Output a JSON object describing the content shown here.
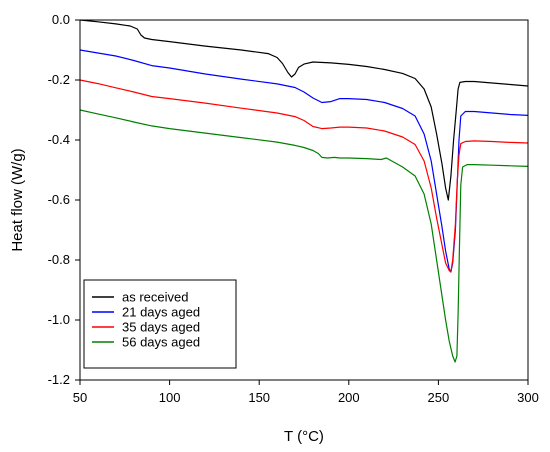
{
  "chart_data": {
    "type": "line",
    "xlabel": "T (°C)",
    "ylabel": "Heat flow (W/g)",
    "xlim": [
      50,
      300
    ],
    "ylim": [
      -1.2,
      0.0
    ],
    "xticks": [
      50,
      100,
      150,
      200,
      250,
      300
    ],
    "yticks": [
      0.0,
      -0.2,
      -0.4,
      -0.6,
      -0.8,
      -1.0,
      -1.2
    ],
    "ytick_labels": [
      "0.0",
      "-0.2",
      "-0.4",
      "-0.6",
      "-0.8",
      "-1.0",
      "-1.2"
    ],
    "grid": false,
    "legend_position": "bottom-left",
    "series": [
      {
        "name": "as received",
        "color": "#000000",
        "points": [
          [
            50,
            0.0
          ],
          [
            60,
            -0.006
          ],
          [
            70,
            -0.013
          ],
          [
            78,
            -0.02
          ],
          [
            82,
            -0.03
          ],
          [
            84,
            -0.05
          ],
          [
            86,
            -0.06
          ],
          [
            90,
            -0.065
          ],
          [
            100,
            -0.072
          ],
          [
            120,
            -0.087
          ],
          [
            140,
            -0.1
          ],
          [
            155,
            -0.112
          ],
          [
            160,
            -0.125
          ],
          [
            163,
            -0.145
          ],
          [
            166,
            -0.175
          ],
          [
            168,
            -0.19
          ],
          [
            170,
            -0.18
          ],
          [
            172,
            -0.158
          ],
          [
            175,
            -0.147
          ],
          [
            180,
            -0.14
          ],
          [
            190,
            -0.143
          ],
          [
            200,
            -0.148
          ],
          [
            210,
            -0.155
          ],
          [
            220,
            -0.165
          ],
          [
            230,
            -0.178
          ],
          [
            237,
            -0.195
          ],
          [
            242,
            -0.23
          ],
          [
            246,
            -0.29
          ],
          [
            249,
            -0.38
          ],
          [
            252,
            -0.48
          ],
          [
            254,
            -0.56
          ],
          [
            255.5,
            -0.6
          ],
          [
            257,
            -0.52
          ],
          [
            258.5,
            -0.4
          ],
          [
            260,
            -0.3
          ],
          [
            261,
            -0.23
          ],
          [
            262,
            -0.208
          ],
          [
            265,
            -0.205
          ],
          [
            270,
            -0.205
          ],
          [
            280,
            -0.21
          ],
          [
            290,
            -0.215
          ],
          [
            300,
            -0.22
          ]
        ]
      },
      {
        "name": "21 days aged",
        "color": "#0000ff",
        "points": [
          [
            50,
            -0.1
          ],
          [
            60,
            -0.11
          ],
          [
            70,
            -0.12
          ],
          [
            80,
            -0.135
          ],
          [
            90,
            -0.152
          ],
          [
            100,
            -0.16
          ],
          [
            120,
            -0.18
          ],
          [
            140,
            -0.197
          ],
          [
            160,
            -0.213
          ],
          [
            170,
            -0.225
          ],
          [
            175,
            -0.24
          ],
          [
            180,
            -0.26
          ],
          [
            185,
            -0.275
          ],
          [
            190,
            -0.272
          ],
          [
            195,
            -0.262
          ],
          [
            200,
            -0.262
          ],
          [
            210,
            -0.265
          ],
          [
            220,
            -0.275
          ],
          [
            230,
            -0.295
          ],
          [
            237,
            -0.32
          ],
          [
            242,
            -0.38
          ],
          [
            246,
            -0.47
          ],
          [
            249,
            -0.58
          ],
          [
            252,
            -0.69
          ],
          [
            254,
            -0.77
          ],
          [
            256,
            -0.83
          ],
          [
            257,
            -0.84
          ],
          [
            258,
            -0.81
          ],
          [
            259.5,
            -0.7
          ],
          [
            260.5,
            -0.55
          ],
          [
            261.5,
            -0.4
          ],
          [
            262.5,
            -0.32
          ],
          [
            265,
            -0.305
          ],
          [
            270,
            -0.305
          ],
          [
            280,
            -0.31
          ],
          [
            290,
            -0.315
          ],
          [
            300,
            -0.318
          ]
        ]
      },
      {
        "name": "35 days aged",
        "color": "#ff0000",
        "points": [
          [
            50,
            -0.2
          ],
          [
            60,
            -0.212
          ],
          [
            70,
            -0.226
          ],
          [
            80,
            -0.24
          ],
          [
            90,
            -0.255
          ],
          [
            100,
            -0.262
          ],
          [
            120,
            -0.277
          ],
          [
            140,
            -0.294
          ],
          [
            160,
            -0.31
          ],
          [
            170,
            -0.322
          ],
          [
            175,
            -0.335
          ],
          [
            180,
            -0.355
          ],
          [
            185,
            -0.362
          ],
          [
            190,
            -0.36
          ],
          [
            195,
            -0.357
          ],
          [
            200,
            -0.357
          ],
          [
            210,
            -0.36
          ],
          [
            220,
            -0.37
          ],
          [
            230,
            -0.39
          ],
          [
            237,
            -0.415
          ],
          [
            242,
            -0.47
          ],
          [
            246,
            -0.56
          ],
          [
            249,
            -0.66
          ],
          [
            252,
            -0.75
          ],
          [
            254,
            -0.81
          ],
          [
            256,
            -0.835
          ],
          [
            257,
            -0.84
          ],
          [
            258,
            -0.8
          ],
          [
            259.5,
            -0.68
          ],
          [
            260.5,
            -0.54
          ],
          [
            261.5,
            -0.45
          ],
          [
            262.5,
            -0.412
          ],
          [
            265,
            -0.405
          ],
          [
            270,
            -0.403
          ],
          [
            280,
            -0.405
          ],
          [
            290,
            -0.408
          ],
          [
            300,
            -0.41
          ]
        ]
      },
      {
        "name": "56 days aged",
        "color": "#008000",
        "points": [
          [
            50,
            -0.3
          ],
          [
            60,
            -0.313
          ],
          [
            70,
            -0.326
          ],
          [
            80,
            -0.34
          ],
          [
            90,
            -0.353
          ],
          [
            100,
            -0.362
          ],
          [
            120,
            -0.377
          ],
          [
            140,
            -0.392
          ],
          [
            160,
            -0.407
          ],
          [
            170,
            -0.418
          ],
          [
            175,
            -0.425
          ],
          [
            180,
            -0.435
          ],
          [
            183,
            -0.445
          ],
          [
            185,
            -0.458
          ],
          [
            188,
            -0.46
          ],
          [
            192,
            -0.458
          ],
          [
            195,
            -0.46
          ],
          [
            200,
            -0.46
          ],
          [
            210,
            -0.462
          ],
          [
            218,
            -0.465
          ],
          [
            221,
            -0.46
          ],
          [
            224,
            -0.47
          ],
          [
            230,
            -0.49
          ],
          [
            237,
            -0.52
          ],
          [
            242,
            -0.58
          ],
          [
            246,
            -0.68
          ],
          [
            249,
            -0.8
          ],
          [
            252,
            -0.92
          ],
          [
            254,
            -1.0
          ],
          [
            256,
            -1.07
          ],
          [
            258,
            -1.12
          ],
          [
            259.3,
            -1.14
          ],
          [
            260.3,
            -1.12
          ],
          [
            261,
            -0.98
          ],
          [
            261.8,
            -0.75
          ],
          [
            262.5,
            -0.55
          ],
          [
            263.5,
            -0.49
          ],
          [
            266,
            -0.482
          ],
          [
            270,
            -0.482
          ],
          [
            280,
            -0.484
          ],
          [
            290,
            -0.486
          ],
          [
            300,
            -0.488
          ]
        ]
      }
    ]
  }
}
